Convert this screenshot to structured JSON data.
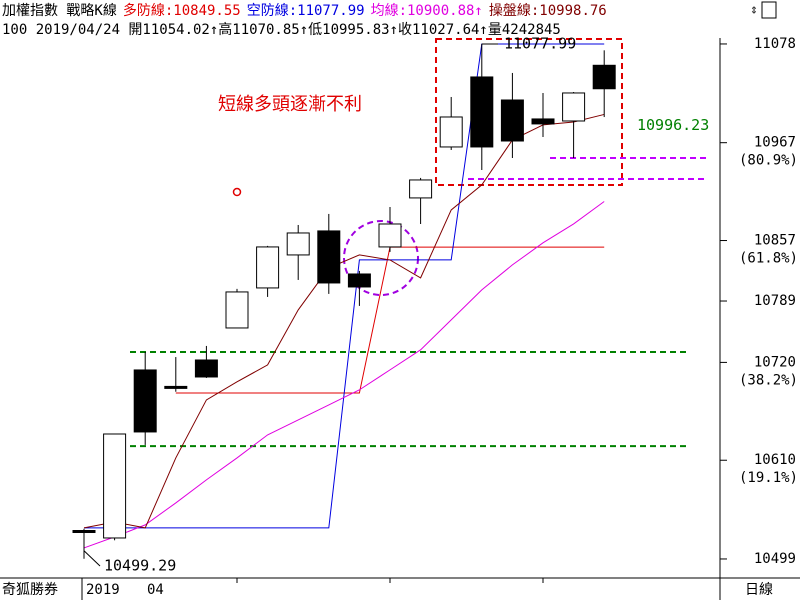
{
  "header": {
    "title": "加權指數 戰略K線",
    "indicators": [
      {
        "text": "多防線:10849.55",
        "color": "#e00000"
      },
      {
        "text": "空防線:11077.99",
        "color": "#0000e0"
      },
      {
        "text": "均線:10900.88↑",
        "color": "#e000e0"
      },
      {
        "text": "操盤線:10998.76",
        "color": "#800000"
      }
    ],
    "quote": "100 2019/04/24 開11054.02↑高11070.85↑低10995.83↑收11027.64↑量4242845"
  },
  "chart_data": {
    "type": "candlestick",
    "categories": [
      null,
      null,
      null,
      null,
      null,
      null,
      null,
      null,
      null,
      null,
      null,
      null,
      null,
      null,
      null,
      null,
      null,
      null
    ],
    "open": [
      10531,
      10522.6,
      10711.5,
      10693,
      10722.7,
      10758.7,
      10803.7,
      10840.8,
      10867.8,
      10819.4,
      10849.8,
      10904.9,
      10962.2,
      11040.9,
      11015.0,
      10993.7,
      10991.4,
      11054.02
    ],
    "high": [
      10533,
      10639.5,
      10731.7,
      10726,
      10738.5,
      10802.6,
      10851.0,
      10874.5,
      10886.9,
      10822.8,
      10894.7,
      10927.4,
      11018.4,
      11077.99,
      11045.4,
      11022.9,
      11024.0,
      11070.85
    ],
    "low": [
      10499.29,
      10520,
      10627.2,
      10687,
      10702.5,
      10758.7,
      10793.6,
      10812.7,
      10797.0,
      10783.5,
      10844.2,
      10875.6,
      10958.8,
      10936.3,
      10949.8,
      10973.4,
      10949.8,
      10995.83
    ],
    "close": [
      10529,
      10639.5,
      10641.8,
      10691,
      10703.6,
      10799.2,
      10849.8,
      10865.5,
      10809.3,
      10804.8,
      10875.6,
      10925.1,
      10995.9,
      10962.2,
      10968.9,
      10988.1,
      11022.9,
      11027.64
    ],
    "up_color": "#ffffff",
    "down_color": "#000000",
    "lines": [
      {
        "color": "#e00000",
        "values": [
          null,
          null,
          null,
          10685.6,
          10685.6,
          10685.6,
          10685.6,
          10685.6,
          10685.6,
          10685.6,
          10849.55,
          10849.55,
          10849.55,
          10849.55,
          10849.55,
          10849.55,
          10849.55,
          10849.55
        ]
      },
      {
        "color": "#0000e0",
        "values": [
          10533.9,
          10533.9,
          10533.9,
          10533.9,
          10533.9,
          10533.9,
          10533.9,
          10533.9,
          10533.9,
          10835.2,
          10835.2,
          10835.2,
          10835.2,
          11077.99,
          11077.99,
          11077.99,
          11077.99,
          11077.99
        ]
      },
      {
        "color": "#e000e0",
        "values": [
          10511.4,
          10523.8,
          10537.3,
          10562.0,
          10587.9,
          10612.6,
          10638.5,
          10655.3,
          10672.2,
          10689.1,
          10711.6,
          10734.1,
          10767.8,
          10801.5,
          10829.6,
          10854.4,
          10875.7,
          10900.88
        ]
      },
      {
        "color": "#800000",
        "values": [
          10533.9,
          10540.6,
          10533.9,
          10612.6,
          10677.8,
          10698.1,
          10717.2,
          10779.0,
          10826.2,
          10840.8,
          10835.2,
          10815.0,
          10891.4,
          10919.5,
          10970.1,
          10987.0,
          10990.3,
          10998.76
        ]
      }
    ],
    "levels": [
      {
        "value": 10731.7,
        "color": "#008000"
      },
      {
        "value": 10625.9,
        "color": "#008000"
      },
      {
        "value": 10949.8,
        "color": "#c000ff"
      },
      {
        "value": 10926.2,
        "color": "#c000ff"
      }
    ],
    "price_labels": [
      11077.99,
      10499.29,
      10996.23
    ],
    "annotation": "短線多頭逐漸不利",
    "ylim": [
      10477.6,
      11084.7
    ],
    "yticks": [
      11078,
      10967,
      10857,
      10789,
      10720,
      10610,
      10499
    ],
    "retracement_labels": [
      {
        "value": 10967,
        "label": "(80.9%)"
      },
      {
        "value": 10857,
        "label": "(61.8%)"
      },
      {
        "value": 10720,
        "label": "(38.2%)"
      },
      {
        "value": 10610,
        "label": "(19.1%)"
      }
    ]
  },
  "footer": {
    "brand": "奇狐勝券",
    "year": "2019",
    "month": "04",
    "period": "日線"
  }
}
